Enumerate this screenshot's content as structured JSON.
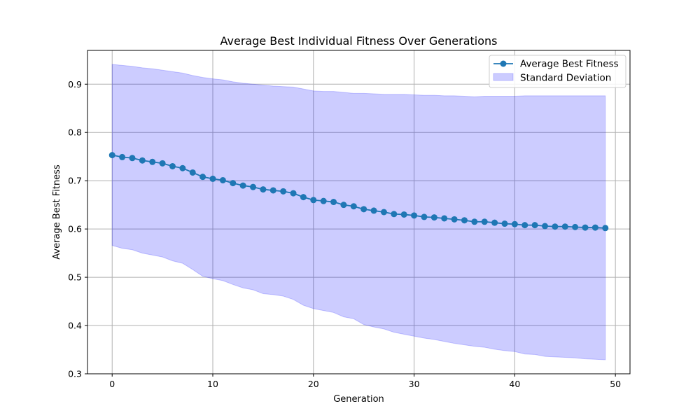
{
  "chart_data": {
    "type": "line",
    "title": "Average Best Individual Fitness Over Generations",
    "xlabel": "Generation",
    "ylabel": "Average Best Fitness",
    "xlim": [
      -2.45,
      51.45
    ],
    "ylim": [
      0.3,
      0.97
    ],
    "xticks": [
      0,
      10,
      20,
      30,
      40,
      50
    ],
    "yticks": [
      0.3,
      0.4,
      0.5,
      0.6,
      0.7,
      0.8,
      0.9
    ],
    "grid": true,
    "legend_position": "top-right",
    "x": [
      0,
      1,
      2,
      3,
      4,
      5,
      6,
      7,
      8,
      9,
      10,
      11,
      12,
      13,
      14,
      15,
      16,
      17,
      18,
      19,
      20,
      21,
      22,
      23,
      24,
      25,
      26,
      27,
      28,
      29,
      30,
      31,
      32,
      33,
      34,
      35,
      36,
      37,
      38,
      39,
      40,
      41,
      42,
      43,
      44,
      45,
      46,
      47,
      48,
      49
    ],
    "series": [
      {
        "name": "Average Best Fitness",
        "color": "#1f77b4",
        "values": [
          0.753,
          0.749,
          0.747,
          0.742,
          0.739,
          0.736,
          0.73,
          0.726,
          0.717,
          0.708,
          0.704,
          0.701,
          0.695,
          0.69,
          0.687,
          0.682,
          0.68,
          0.678,
          0.674,
          0.666,
          0.66,
          0.658,
          0.656,
          0.65,
          0.647,
          0.641,
          0.638,
          0.635,
          0.631,
          0.63,
          0.628,
          0.625,
          0.624,
          0.622,
          0.62,
          0.618,
          0.615,
          0.615,
          0.613,
          0.611,
          0.61,
          0.608,
          0.608,
          0.606,
          0.605,
          0.605,
          0.604,
          0.603,
          0.603,
          0.602
        ]
      },
      {
        "name": "Standard Deviation",
        "type": "band",
        "color": "#0000ff",
        "upper": [
          0.941,
          0.939,
          0.937,
          0.934,
          0.932,
          0.929,
          0.926,
          0.923,
          0.918,
          0.914,
          0.911,
          0.909,
          0.905,
          0.902,
          0.9,
          0.898,
          0.896,
          0.895,
          0.894,
          0.89,
          0.886,
          0.885,
          0.885,
          0.883,
          0.881,
          0.881,
          0.88,
          0.879,
          0.879,
          0.879,
          0.878,
          0.877,
          0.877,
          0.876,
          0.876,
          0.875,
          0.874,
          0.875,
          0.875,
          0.875,
          0.875,
          0.876,
          0.876,
          0.876,
          0.876,
          0.876,
          0.876,
          0.876,
          0.876,
          0.876
        ],
        "lower": [
          0.566,
          0.56,
          0.557,
          0.55,
          0.546,
          0.542,
          0.534,
          0.529,
          0.516,
          0.502,
          0.497,
          0.493,
          0.485,
          0.478,
          0.474,
          0.466,
          0.464,
          0.461,
          0.454,
          0.442,
          0.435,
          0.431,
          0.427,
          0.418,
          0.414,
          0.402,
          0.397,
          0.393,
          0.386,
          0.382,
          0.378,
          0.374,
          0.371,
          0.367,
          0.363,
          0.36,
          0.357,
          0.355,
          0.351,
          0.348,
          0.346,
          0.341,
          0.34,
          0.336,
          0.335,
          0.334,
          0.333,
          0.331,
          0.33,
          0.329
        ]
      }
    ]
  }
}
